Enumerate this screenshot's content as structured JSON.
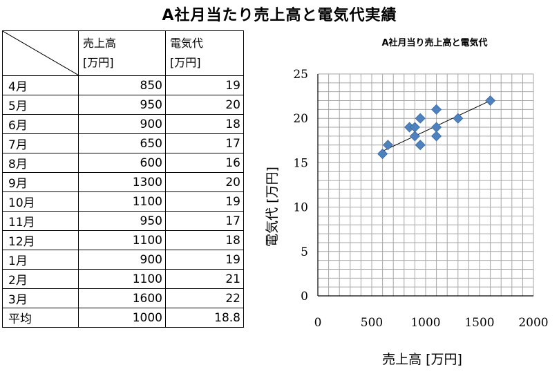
{
  "title": "A社月当たり売上高と電気代実績",
  "table": {
    "headers": [
      {
        "line1": "売上高",
        "line2": "[万円]"
      },
      {
        "line1": "電気代",
        "line2": "[万円]"
      }
    ],
    "rows": [
      {
        "label": "4月",
        "sales": "850",
        "electricity": "19"
      },
      {
        "label": "5月",
        "sales": "950",
        "electricity": "20"
      },
      {
        "label": "6月",
        "sales": "900",
        "electricity": "18"
      },
      {
        "label": "7月",
        "sales": "650",
        "electricity": "17"
      },
      {
        "label": "8月",
        "sales": "600",
        "electricity": "16"
      },
      {
        "label": "9月",
        "sales": "1300",
        "electricity": "20"
      },
      {
        "label": "10月",
        "sales": "1100",
        "electricity": "19"
      },
      {
        "label": "11月",
        "sales": "950",
        "electricity": "17"
      },
      {
        "label": "12月",
        "sales": "1100",
        "electricity": "18"
      },
      {
        "label": "1月",
        "sales": "900",
        "electricity": "19"
      },
      {
        "label": "2月",
        "sales": "1100",
        "electricity": "21"
      },
      {
        "label": "3月",
        "sales": "1600",
        "electricity": "22"
      }
    ],
    "average": {
      "label": "平均",
      "sales": "1000",
      "electricity": "18.8"
    }
  },
  "chart_data": {
    "type": "scatter",
    "title": "A社月当り売上高と電気代",
    "xlabel": "売上高 [万円]",
    "ylabel": "電気代 [万円]",
    "xlim": [
      0,
      2000
    ],
    "ylim": [
      0,
      25
    ],
    "xticks": [
      0,
      500,
      1000,
      1500,
      2000
    ],
    "yticks": [
      0,
      5,
      10,
      15,
      20,
      25
    ],
    "grid": true,
    "marker_color": "#4F81BD",
    "trendline": {
      "from": [
        600,
        16.3
      ],
      "to": [
        1600,
        22.0
      ]
    },
    "points": [
      {
        "x": 850,
        "y": 19
      },
      {
        "x": 950,
        "y": 20
      },
      {
        "x": 900,
        "y": 18
      },
      {
        "x": 650,
        "y": 17
      },
      {
        "x": 600,
        "y": 16
      },
      {
        "x": 1300,
        "y": 20
      },
      {
        "x": 1100,
        "y": 19
      },
      {
        "x": 950,
        "y": 17
      },
      {
        "x": 1100,
        "y": 18
      },
      {
        "x": 900,
        "y": 19
      },
      {
        "x": 1100,
        "y": 21
      },
      {
        "x": 1600,
        "y": 22
      }
    ]
  }
}
